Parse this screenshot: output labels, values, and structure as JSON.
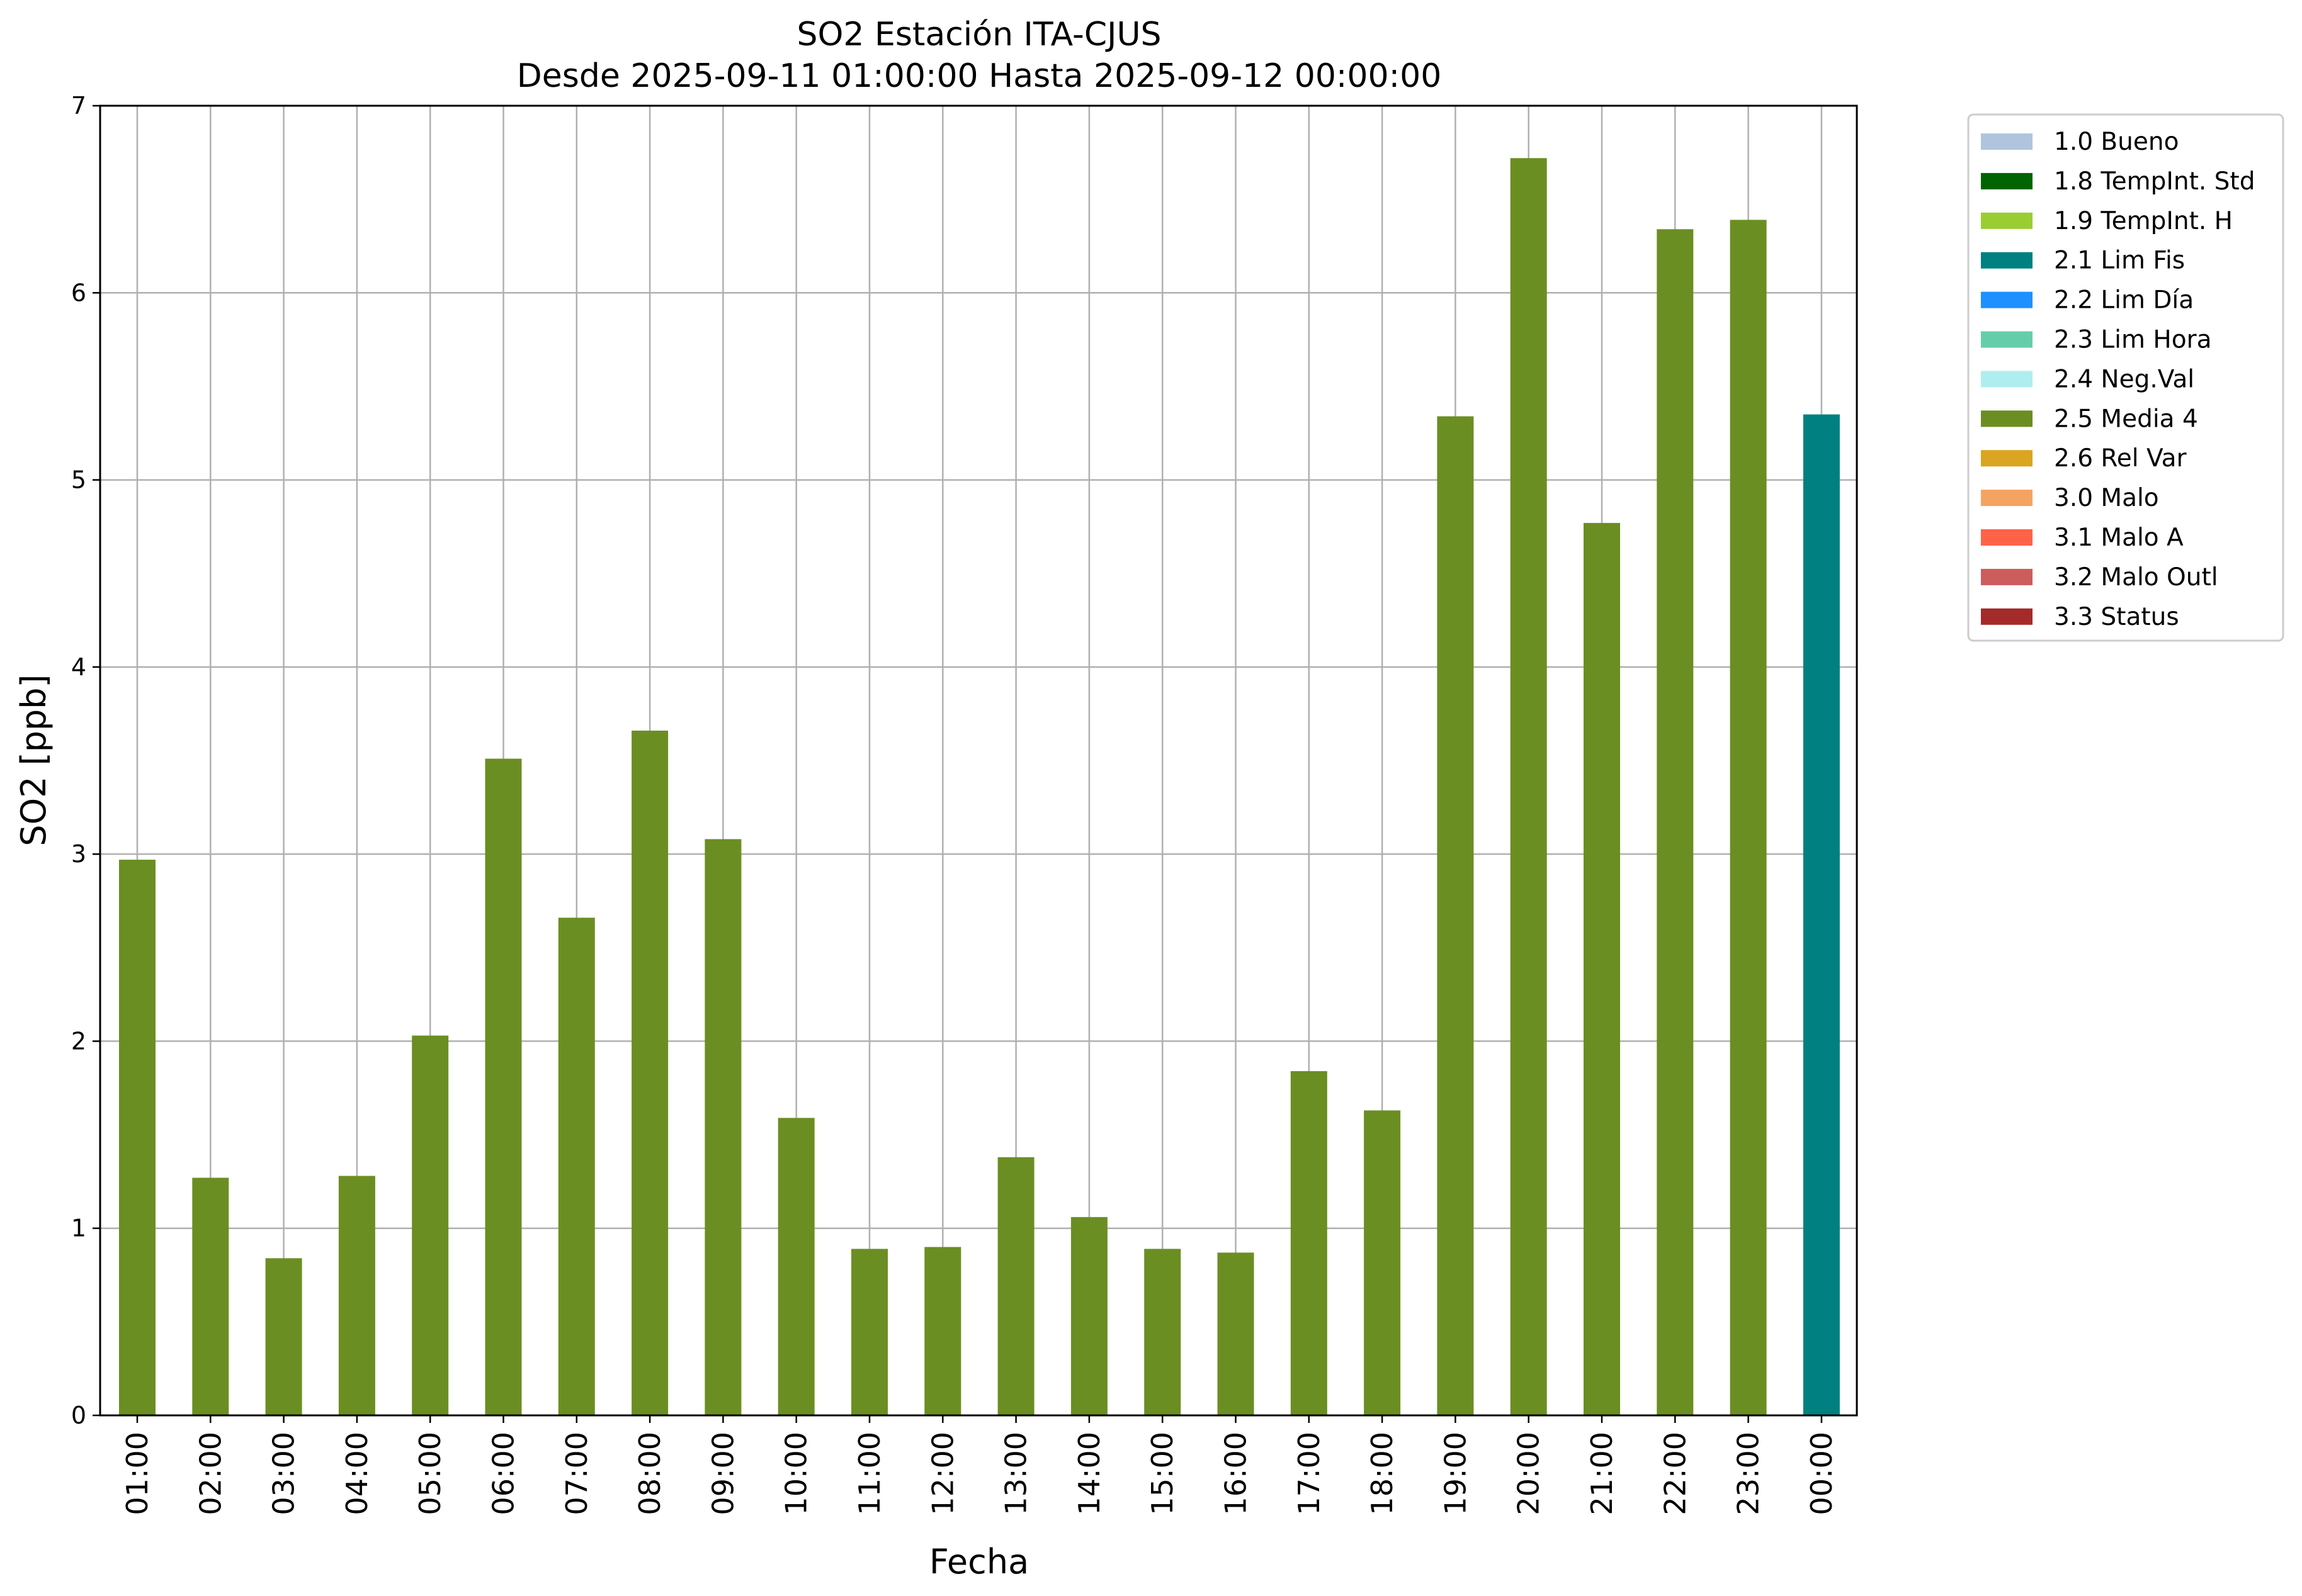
{
  "chart_data": {
    "type": "bar",
    "title": "SO2 Estación ITA-CJUS",
    "subtitle": "Desde 2025-09-11 01:00:00 Hasta 2025-09-12 00:00:00",
    "xlabel": "Fecha",
    "ylabel": "SO2 [ppb]",
    "ylim": [
      0,
      7
    ],
    "yticks": [
      0,
      1,
      2,
      3,
      4,
      5,
      6,
      7
    ],
    "grid": true,
    "legend_position": "outside-right-top",
    "categories": [
      "01:00",
      "02:00",
      "03:00",
      "04:00",
      "05:00",
      "06:00",
      "07:00",
      "08:00",
      "09:00",
      "10:00",
      "11:00",
      "12:00",
      "13:00",
      "14:00",
      "15:00",
      "16:00",
      "17:00",
      "18:00",
      "19:00",
      "20:00",
      "21:00",
      "22:00",
      "23:00",
      "00:00"
    ],
    "values": [
      2.97,
      1.27,
      0.84,
      1.28,
      2.03,
      3.51,
      2.66,
      3.66,
      3.08,
      1.59,
      0.89,
      0.9,
      1.38,
      1.06,
      0.89,
      0.87,
      1.84,
      1.63,
      5.34,
      6.72,
      4.77,
      6.34,
      6.39,
      5.35
    ],
    "flags": [
      "2.5 Media 4",
      "2.5 Media 4",
      "2.5 Media 4",
      "2.5 Media 4",
      "2.5 Media 4",
      "2.5 Media 4",
      "2.5 Media 4",
      "2.5 Media 4",
      "2.5 Media 4",
      "2.5 Media 4",
      "2.5 Media 4",
      "2.5 Media 4",
      "2.5 Media 4",
      "2.5 Media 4",
      "2.5 Media 4",
      "2.5 Media 4",
      "2.5 Media 4",
      "2.5 Media 4",
      "2.5 Media 4",
      "2.5 Media 4",
      "2.5 Media 4",
      "2.5 Media 4",
      "2.5 Media 4",
      "2.1 Lim Fis"
    ],
    "legend": [
      {
        "label": "1.0 Bueno",
        "color": "#b0c4de"
      },
      {
        "label": "1.8 TempInt. Std",
        "color": "#006400"
      },
      {
        "label": "1.9 TempInt. H",
        "color": "#9acd32"
      },
      {
        "label": "2.1 Lim Fis",
        "color": "#008080"
      },
      {
        "label": "2.2 Lim Día",
        "color": "#1e90ff"
      },
      {
        "label": "2.3 Lim Hora",
        "color": "#66cdaa"
      },
      {
        "label": "2.4 Neg.Val",
        "color": "#afeeee"
      },
      {
        "label": "2.5 Media 4",
        "color": "#6b8e23"
      },
      {
        "label": "2.6 Rel Var",
        "color": "#daa520"
      },
      {
        "label": "3.0 Malo",
        "color": "#f4a460"
      },
      {
        "label": "3.1 Malo A",
        "color": "#ff6347"
      },
      {
        "label": "3.2 Malo Outl",
        "color": "#cd5c5c"
      },
      {
        "label": "3.3 Status",
        "color": "#a52a2a"
      }
    ]
  }
}
